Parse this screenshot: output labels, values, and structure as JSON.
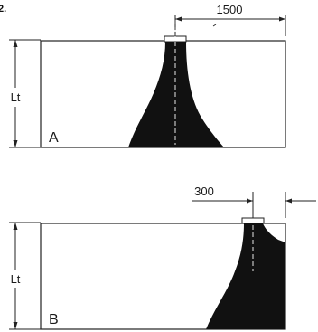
{
  "figure_label": "2.",
  "colors": {
    "line": "#222222",
    "fill": "#111111",
    "background": "#ffffff"
  },
  "panels": [
    {
      "label": "A",
      "height_label": "Lt",
      "offset_label": "1500"
    },
    {
      "label": "B",
      "height_label": "Lt",
      "offset_label": "300"
    }
  ]
}
